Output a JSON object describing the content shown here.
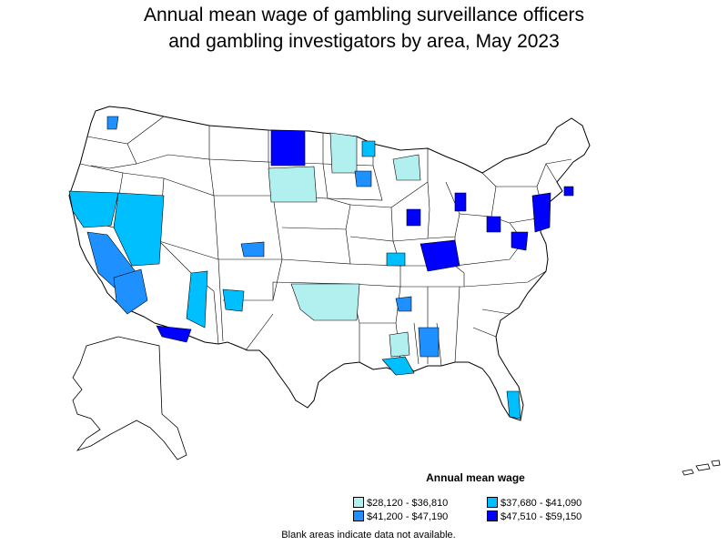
{
  "title": {
    "line1": "Annual mean wage of gambling surveillance officers",
    "line2": "and gambling investigators by area, May 2023"
  },
  "legend": {
    "title": "Annual mean wage",
    "items": [
      {
        "label": "$28,120 - $36,810",
        "color": "#b2efef"
      },
      {
        "label": "$37,680 - $41,090",
        "color": "#00bfff"
      },
      {
        "label": "$41,200 - $47,190",
        "color": "#1e90ff"
      },
      {
        "label": "$47,510 - $59,150",
        "color": "#0000ff"
      }
    ]
  },
  "note": "Blank areas indicate data not available.",
  "colors": {
    "outline": "#000000",
    "background": "#ffffff",
    "no_data": "#ffffff"
  }
}
